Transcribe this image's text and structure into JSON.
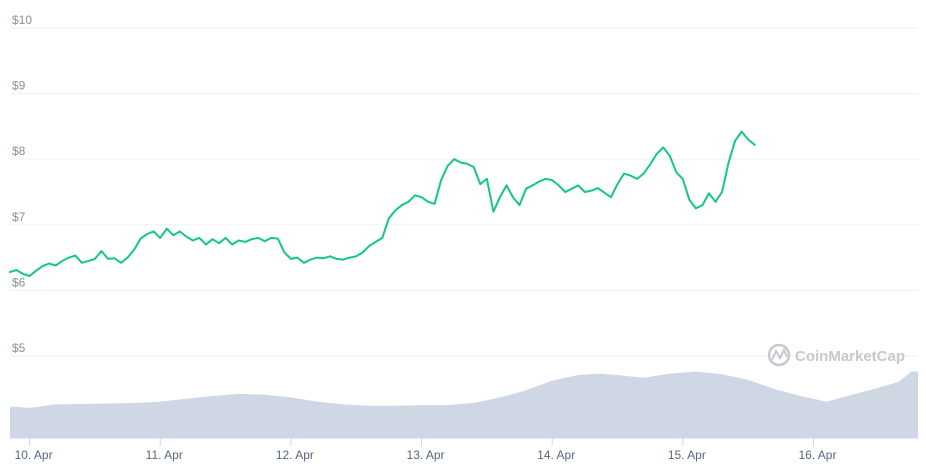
{
  "chart_data": {
    "type": "line",
    "yaxis": {
      "ticks": [
        5,
        6,
        7,
        8,
        9,
        10
      ],
      "labels": [
        "$5",
        "$6",
        "$7",
        "$8",
        "$9",
        "$10"
      ],
      "range": [
        5,
        10
      ],
      "grid": true
    },
    "xaxis": {
      "labels": [
        "10. Apr",
        "11. Apr",
        "12. Apr",
        "13. Apr",
        "14. Apr",
        "15. Apr",
        "16. Apr"
      ],
      "range_days": [
        9.85,
        16.8
      ]
    },
    "series": [
      {
        "kind": "price",
        "color": "#16c784",
        "points": [
          [
            9.85,
            6.28
          ],
          [
            9.9,
            6.31
          ],
          [
            9.95,
            6.25
          ],
          [
            10.0,
            6.22
          ],
          [
            10.05,
            6.3
          ],
          [
            10.1,
            6.37
          ],
          [
            10.15,
            6.41
          ],
          [
            10.2,
            6.38
          ],
          [
            10.25,
            6.45
          ],
          [
            10.3,
            6.5
          ],
          [
            10.35,
            6.53
          ],
          [
            10.4,
            6.42
          ],
          [
            10.45,
            6.45
          ],
          [
            10.5,
            6.48
          ],
          [
            10.55,
            6.6
          ],
          [
            10.6,
            6.48
          ],
          [
            10.65,
            6.49
          ],
          [
            10.7,
            6.42
          ],
          [
            10.75,
            6.5
          ],
          [
            10.8,
            6.62
          ],
          [
            10.85,
            6.79
          ],
          [
            10.9,
            6.86
          ],
          [
            10.95,
            6.9
          ],
          [
            11.0,
            6.8
          ],
          [
            11.05,
            6.94
          ],
          [
            11.1,
            6.84
          ],
          [
            11.15,
            6.9
          ],
          [
            11.2,
            6.82
          ],
          [
            11.25,
            6.76
          ],
          [
            11.3,
            6.8
          ],
          [
            11.35,
            6.7
          ],
          [
            11.4,
            6.78
          ],
          [
            11.45,
            6.72
          ],
          [
            11.5,
            6.8
          ],
          [
            11.55,
            6.7
          ],
          [
            11.6,
            6.76
          ],
          [
            11.65,
            6.74
          ],
          [
            11.7,
            6.78
          ],
          [
            11.75,
            6.8
          ],
          [
            11.8,
            6.75
          ],
          [
            11.85,
            6.8
          ],
          [
            11.9,
            6.79
          ],
          [
            11.95,
            6.58
          ],
          [
            12.0,
            6.48
          ],
          [
            12.05,
            6.5
          ],
          [
            12.1,
            6.42
          ],
          [
            12.15,
            6.47
          ],
          [
            12.2,
            6.5
          ],
          [
            12.25,
            6.49
          ],
          [
            12.3,
            6.52
          ],
          [
            12.35,
            6.48
          ],
          [
            12.4,
            6.47
          ],
          [
            12.45,
            6.5
          ],
          [
            12.5,
            6.52
          ],
          [
            12.55,
            6.58
          ],
          [
            12.6,
            6.68
          ],
          [
            12.65,
            6.74
          ],
          [
            12.7,
            6.8
          ],
          [
            12.75,
            7.1
          ],
          [
            12.8,
            7.22
          ],
          [
            12.85,
            7.3
          ],
          [
            12.9,
            7.35
          ],
          [
            12.95,
            7.45
          ],
          [
            13.0,
            7.42
          ],
          [
            13.05,
            7.35
          ],
          [
            13.1,
            7.32
          ],
          [
            13.15,
            7.68
          ],
          [
            13.2,
            7.9
          ],
          [
            13.25,
            8.0
          ],
          [
            13.3,
            7.95
          ],
          [
            13.35,
            7.93
          ],
          [
            13.4,
            7.88
          ],
          [
            13.45,
            7.62
          ],
          [
            13.5,
            7.7
          ],
          [
            13.55,
            7.2
          ],
          [
            13.6,
            7.42
          ],
          [
            13.65,
            7.6
          ],
          [
            13.7,
            7.42
          ],
          [
            13.75,
            7.3
          ],
          [
            13.8,
            7.55
          ],
          [
            13.85,
            7.6
          ],
          [
            13.9,
            7.66
          ],
          [
            13.95,
            7.7
          ],
          [
            14.0,
            7.68
          ],
          [
            14.05,
            7.6
          ],
          [
            14.1,
            7.5
          ],
          [
            14.15,
            7.55
          ],
          [
            14.2,
            7.6
          ],
          [
            14.25,
            7.5
          ],
          [
            14.3,
            7.52
          ],
          [
            14.35,
            7.56
          ],
          [
            14.4,
            7.49
          ],
          [
            14.45,
            7.42
          ],
          [
            14.5,
            7.62
          ],
          [
            14.55,
            7.78
          ],
          [
            14.6,
            7.75
          ],
          [
            14.65,
            7.7
          ],
          [
            14.7,
            7.78
          ],
          [
            14.75,
            7.92
          ],
          [
            14.8,
            8.08
          ],
          [
            14.85,
            8.18
          ],
          [
            14.9,
            8.05
          ],
          [
            14.95,
            7.8
          ],
          [
            15.0,
            7.7
          ],
          [
            15.05,
            7.38
          ],
          [
            15.1,
            7.25
          ],
          [
            15.15,
            7.3
          ],
          [
            15.2,
            7.48
          ],
          [
            15.25,
            7.35
          ],
          [
            15.3,
            7.5
          ],
          [
            15.35,
            7.95
          ],
          [
            15.4,
            8.28
          ],
          [
            15.45,
            8.42
          ],
          [
            15.5,
            8.3
          ],
          [
            15.55,
            8.22
          ]
        ]
      },
      {
        "kind": "volume",
        "color": "#cfd6e4",
        "points": [
          [
            9.85,
            0.45
          ],
          [
            10.0,
            0.43
          ],
          [
            10.2,
            0.48
          ],
          [
            10.5,
            0.49
          ],
          [
            10.8,
            0.5
          ],
          [
            11.0,
            0.52
          ],
          [
            11.2,
            0.56
          ],
          [
            11.4,
            0.6
          ],
          [
            11.6,
            0.63
          ],
          [
            11.8,
            0.62
          ],
          [
            12.0,
            0.58
          ],
          [
            12.2,
            0.52
          ],
          [
            12.4,
            0.48
          ],
          [
            12.6,
            0.46
          ],
          [
            12.8,
            0.46
          ],
          [
            13.0,
            0.47
          ],
          [
            13.2,
            0.47
          ],
          [
            13.4,
            0.5
          ],
          [
            13.6,
            0.58
          ],
          [
            13.8,
            0.68
          ],
          [
            14.0,
            0.82
          ],
          [
            14.2,
            0.9
          ],
          [
            14.35,
            0.92
          ],
          [
            14.5,
            0.9
          ],
          [
            14.7,
            0.86
          ],
          [
            14.9,
            0.92
          ],
          [
            15.1,
            0.95
          ],
          [
            15.3,
            0.91
          ],
          [
            15.5,
            0.83
          ],
          [
            15.7,
            0.7
          ],
          [
            15.9,
            0.6
          ],
          [
            16.1,
            0.52
          ],
          [
            16.3,
            0.62
          ],
          [
            16.5,
            0.72
          ],
          [
            16.65,
            0.8
          ],
          [
            16.75,
            0.95
          ],
          [
            16.8,
            0.95
          ]
        ]
      }
    ],
    "watermark": "CoinMarketCap"
  }
}
